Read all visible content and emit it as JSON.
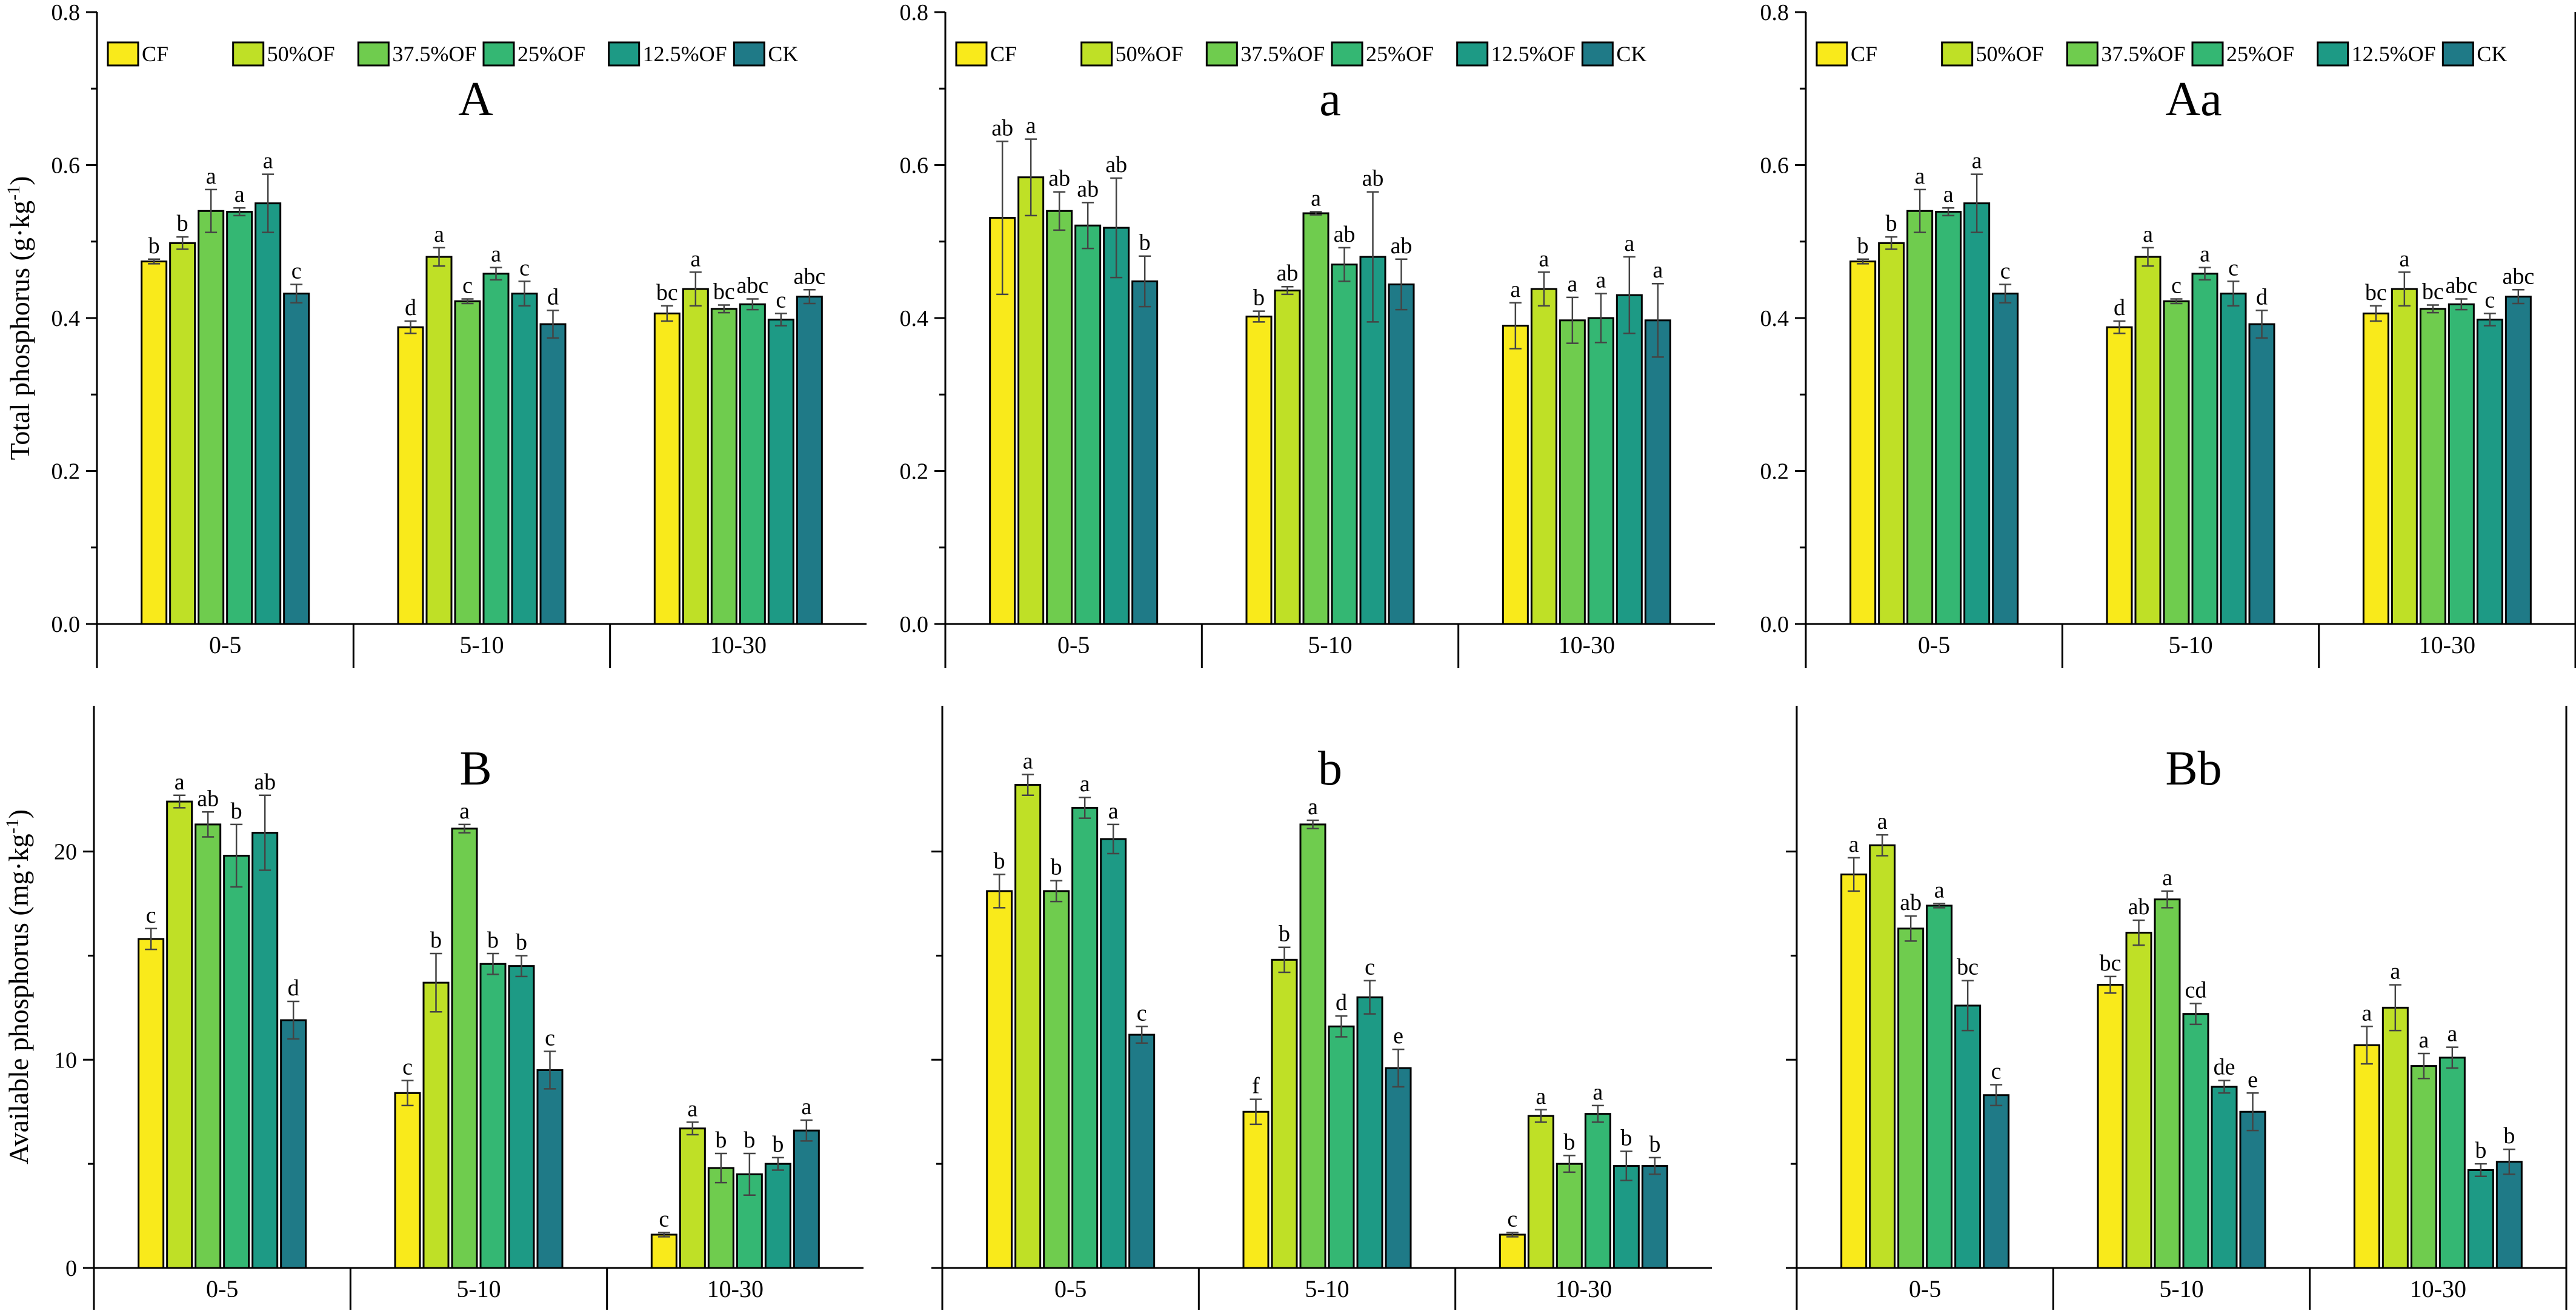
{
  "chart_data": [
    {
      "type": "bar",
      "panel": "A",
      "ylabel": "Total phosphorus (g·kg-1)",
      "ylabel_main": "Total phosphorus (g·kg",
      "ylabel_sup": "-1",
      "ylabel_end": ")",
      "ylim": [
        0,
        0.8
      ],
      "yticks": [
        "0.0",
        "0.2",
        "0.4",
        "0.6",
        "0.8"
      ],
      "show_y_tick_labels": true,
      "legend": true,
      "categories": [
        "0-5",
        "5-10",
        "10-30"
      ],
      "series": [
        {
          "name": "CF",
          "color": "#f9ea1b",
          "values": [
            0.474,
            0.388,
            0.406
          ],
          "errors": [
            0.003,
            0.008,
            0.01
          ],
          "letters": [
            "b",
            "d",
            "bc"
          ]
        },
        {
          "name": "50%OF",
          "color": "#bfe026",
          "values": [
            0.498,
            0.48,
            0.438
          ],
          "errors": [
            0.008,
            0.012,
            0.022
          ],
          "letters": [
            "b",
            "a",
            "a"
          ]
        },
        {
          "name": "37.5%OF",
          "color": "#6fcc4e",
          "values": [
            0.54,
            0.422,
            0.412
          ],
          "errors": [
            0.028,
            0.003,
            0.005
          ],
          "letters": [
            "a",
            "c",
            "bc"
          ]
        },
        {
          "name": "25%OF",
          "color": "#34b773",
          "values": [
            0.539,
            0.458,
            0.418
          ],
          "errors": [
            0.005,
            0.008,
            0.007
          ],
          "letters": [
            "a",
            "a",
            "abc"
          ]
        },
        {
          "name": "12.5%OF",
          "color": "#1d9a85",
          "values": [
            0.55,
            0.432,
            0.398
          ],
          "errors": [
            0.038,
            0.016,
            0.008
          ],
          "letters": [
            "a",
            "c",
            "c"
          ]
        },
        {
          "name": "CK",
          "color": "#1f7a87",
          "values": [
            0.432,
            0.392,
            0.428
          ],
          "errors": [
            0.012,
            0.018,
            0.009
          ],
          "letters": [
            "c",
            "d",
            "abc"
          ]
        }
      ]
    },
    {
      "type": "bar",
      "panel": "a",
      "ylabel": "",
      "ylim": [
        0,
        0.8
      ],
      "yticks": [
        "0.0",
        "0.2",
        "0.4",
        "0.6",
        "0.8"
      ],
      "show_y_tick_labels": true,
      "legend": true,
      "categories": [
        "0-5",
        "5-10",
        "10-30"
      ],
      "series": [
        {
          "name": "CF",
          "color": "#f9ea1b",
          "values": [
            0.531,
            0.402,
            0.39
          ],
          "errors": [
            0.1,
            0.007,
            0.03
          ],
          "letters": [
            "ab",
            "b",
            "a"
          ]
        },
        {
          "name": "50%OF",
          "color": "#bfe026",
          "values": [
            0.584,
            0.436,
            0.438
          ],
          "errors": [
            0.05,
            0.005,
            0.022
          ],
          "letters": [
            "a",
            "ab",
            "a"
          ]
        },
        {
          "name": "37.5%OF",
          "color": "#6fcc4e",
          "values": [
            0.54,
            0.537,
            0.397
          ],
          "errors": [
            0.025,
            0.002,
            0.03
          ],
          "letters": [
            "ab",
            "a",
            "a"
          ]
        },
        {
          "name": "25%OF",
          "color": "#34b773",
          "values": [
            0.521,
            0.47,
            0.4
          ],
          "errors": [
            0.03,
            0.022,
            0.032
          ],
          "letters": [
            "ab",
            "ab",
            "a"
          ]
        },
        {
          "name": "12.5%OF",
          "color": "#1d9a85",
          "values": [
            0.518,
            0.48,
            0.43
          ],
          "errors": [
            0.065,
            0.085,
            0.05
          ],
          "letters": [
            "ab",
            "ab",
            "a"
          ]
        },
        {
          "name": "CK",
          "color": "#1f7a87",
          "values": [
            0.448,
            0.444,
            0.397
          ],
          "errors": [
            0.033,
            0.033,
            0.048
          ],
          "letters": [
            "b",
            "ab",
            "a"
          ]
        }
      ]
    },
    {
      "type": "bar",
      "panel": "Aa",
      "ylabel": "",
      "ylim": [
        0,
        0.8
      ],
      "yticks": [
        "0.0",
        "0.2",
        "0.4",
        "0.6",
        "0.8"
      ],
      "show_y_tick_labels": true,
      "legend": true,
      "categories": [
        "0-5",
        "5-10",
        "10-30"
      ],
      "series": [
        {
          "name": "CF",
          "color": "#f9ea1b",
          "values": [
            0.474,
            0.388,
            0.406
          ],
          "errors": [
            0.003,
            0.008,
            0.01
          ],
          "letters": [
            "b",
            "d",
            "bc"
          ]
        },
        {
          "name": "50%OF",
          "color": "#bfe026",
          "values": [
            0.498,
            0.48,
            0.438
          ],
          "errors": [
            0.008,
            0.012,
            0.022
          ],
          "letters": [
            "b",
            "a",
            "a"
          ]
        },
        {
          "name": "37.5%OF",
          "color": "#6fcc4e",
          "values": [
            0.54,
            0.422,
            0.412
          ],
          "errors": [
            0.028,
            0.003,
            0.005
          ],
          "letters": [
            "a",
            "c",
            "bc"
          ]
        },
        {
          "name": "25%OF",
          "color": "#34b773",
          "values": [
            0.539,
            0.458,
            0.418
          ],
          "errors": [
            0.005,
            0.008,
            0.007
          ],
          "letters": [
            "a",
            "a",
            "abc"
          ]
        },
        {
          "name": "12.5%OF",
          "color": "#1d9a85",
          "values": [
            0.55,
            0.432,
            0.398
          ],
          "errors": [
            0.038,
            0.016,
            0.008
          ],
          "letters": [
            "a",
            "c",
            "c"
          ]
        },
        {
          "name": "CK",
          "color": "#1f7a87",
          "values": [
            0.432,
            0.392,
            0.428
          ],
          "errors": [
            0.012,
            0.018,
            0.009
          ],
          "letters": [
            "c",
            "d",
            "abc"
          ]
        }
      ]
    },
    {
      "type": "bar",
      "panel": "B",
      "ylabel": "Available phosphorus (mg·kg-1)",
      "ylabel_main": "Available phosphorus (mg·kg",
      "ylabel_sup": "-1",
      "ylabel_end": ")",
      "ylim": [
        0,
        27
      ],
      "yticks": [
        "0",
        "10",
        "20"
      ],
      "show_y_tick_labels": true,
      "legend": false,
      "categories": [
        "0-5",
        "5-10",
        "10-30"
      ],
      "series": [
        {
          "name": "CF",
          "color": "#f9ea1b",
          "values": [
            15.8,
            8.4,
            1.6
          ],
          "errors": [
            0.5,
            0.6,
            0.1
          ],
          "letters": [
            "c",
            "c",
            "c"
          ]
        },
        {
          "name": "50%OF",
          "color": "#bfe026",
          "values": [
            22.4,
            13.7,
            6.7
          ],
          "errors": [
            0.3,
            1.4,
            0.3
          ],
          "letters": [
            "a",
            "b",
            "a"
          ]
        },
        {
          "name": "37.5%OF",
          "color": "#6fcc4e",
          "values": [
            21.3,
            21.1,
            4.8
          ],
          "errors": [
            0.6,
            0.2,
            0.7
          ],
          "letters": [
            "ab",
            "a",
            "b"
          ]
        },
        {
          "name": "25%OF",
          "color": "#34b773",
          "values": [
            19.8,
            14.6,
            4.5
          ],
          "errors": [
            1.5,
            0.5,
            1.0
          ],
          "letters": [
            "b",
            "b",
            "b"
          ]
        },
        {
          "name": "12.5%OF",
          "color": "#1d9a85",
          "values": [
            20.9,
            14.5,
            5.0
          ],
          "errors": [
            1.8,
            0.5,
            0.3
          ],
          "letters": [
            "ab",
            "b",
            "b"
          ]
        },
        {
          "name": "CK",
          "color": "#1f7a87",
          "values": [
            11.9,
            9.5,
            6.6
          ],
          "errors": [
            0.9,
            0.9,
            0.5
          ],
          "letters": [
            "d",
            "c",
            "a"
          ]
        }
      ]
    },
    {
      "type": "bar",
      "panel": "b",
      "ylabel": "",
      "ylim": [
        0,
        27
      ],
      "yticks": [
        "0",
        "10",
        "20"
      ],
      "show_y_tick_labels": false,
      "legend": false,
      "categories": [
        "0-5",
        "5-10",
        "10-30"
      ],
      "series": [
        {
          "name": "CF",
          "color": "#f9ea1b",
          "values": [
            18.1,
            7.5,
            1.6
          ],
          "errors": [
            0.8,
            0.6,
            0.1
          ],
          "letters": [
            "b",
            "f",
            "c"
          ]
        },
        {
          "name": "50%OF",
          "color": "#bfe026",
          "values": [
            23.2,
            14.8,
            7.3
          ],
          "errors": [
            0.5,
            0.6,
            0.3
          ],
          "letters": [
            "a",
            "b",
            "a"
          ]
        },
        {
          "name": "37.5%OF",
          "color": "#6fcc4e",
          "values": [
            18.1,
            21.3,
            5.0
          ],
          "errors": [
            0.5,
            0.2,
            0.4
          ],
          "letters": [
            "b",
            "a",
            "b"
          ]
        },
        {
          "name": "25%OF",
          "color": "#34b773",
          "values": [
            22.1,
            11.6,
            7.4
          ],
          "errors": [
            0.5,
            0.5,
            0.4
          ],
          "letters": [
            "a",
            "d",
            "a"
          ]
        },
        {
          "name": "12.5%OF",
          "color": "#1d9a85",
          "values": [
            20.6,
            13.0,
            4.9
          ],
          "errors": [
            0.7,
            0.8,
            0.7
          ],
          "letters": [
            "a",
            "c",
            "b"
          ]
        },
        {
          "name": "CK",
          "color": "#1f7a87",
          "values": [
            11.2,
            9.6,
            4.9
          ],
          "errors": [
            0.4,
            0.9,
            0.4
          ],
          "letters": [
            "c",
            "e",
            "b"
          ]
        }
      ]
    },
    {
      "type": "bar",
      "panel": "Bb",
      "ylabel": "",
      "ylim": [
        0,
        27
      ],
      "yticks": [
        "0",
        "10",
        "20"
      ],
      "show_y_tick_labels": false,
      "legend": false,
      "categories": [
        "0-5",
        "5-10",
        "10-30"
      ],
      "series": [
        {
          "name": "CF",
          "color": "#f9ea1b",
          "values": [
            18.9,
            13.6,
            10.7
          ],
          "errors": [
            0.8,
            0.4,
            0.9
          ],
          "letters": [
            "a",
            "bc",
            "a"
          ]
        },
        {
          "name": "50%OF",
          "color": "#bfe026",
          "values": [
            20.3,
            16.1,
            12.5
          ],
          "errors": [
            0.5,
            0.6,
            1.1
          ],
          "letters": [
            "a",
            "ab",
            "a"
          ]
        },
        {
          "name": "37.5%OF",
          "color": "#6fcc4e",
          "values": [
            16.3,
            17.7,
            9.7
          ],
          "errors": [
            0.6,
            0.4,
            0.6
          ],
          "letters": [
            "ab",
            "a",
            "a"
          ]
        },
        {
          "name": "25%OF",
          "color": "#34b773",
          "values": [
            17.4,
            12.2,
            10.1
          ],
          "errors": [
            0.1,
            0.5,
            0.5
          ],
          "letters": [
            "a",
            "cd",
            "a"
          ]
        },
        {
          "name": "12.5%OF",
          "color": "#1d9a85",
          "values": [
            12.6,
            8.7,
            4.7
          ],
          "errors": [
            1.2,
            0.3,
            0.3
          ],
          "letters": [
            "bc",
            "de",
            "b"
          ]
        },
        {
          "name": "CK",
          "color": "#1f7a87",
          "values": [
            8.3,
            7.5,
            5.1
          ],
          "errors": [
            0.5,
            0.9,
            0.6
          ],
          "letters": [
            "c",
            "e",
            "b"
          ]
        }
      ]
    }
  ]
}
